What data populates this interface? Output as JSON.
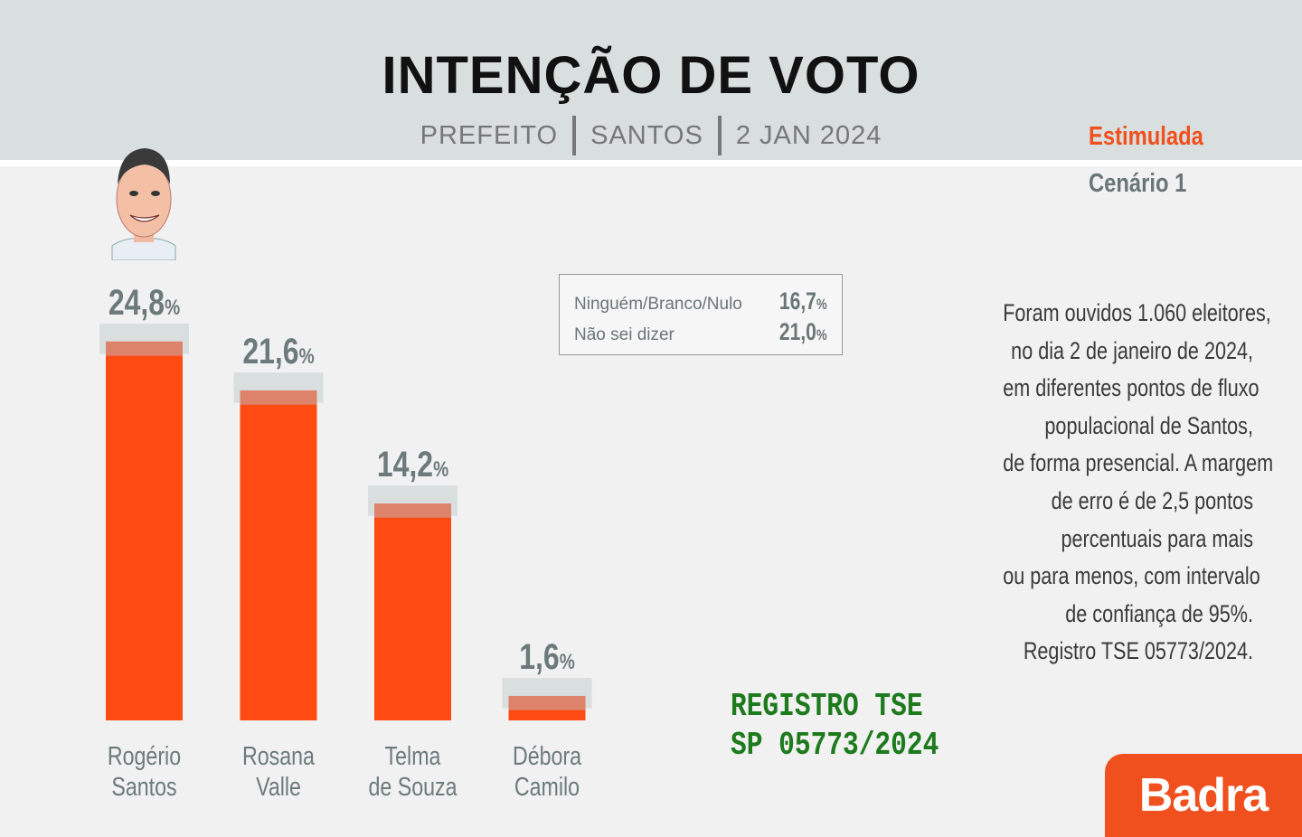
{
  "header": {
    "title": "INTENÇÃO DE VOTO",
    "subtitle_parts": [
      "PREFEITO",
      "SANTOS",
      "2 JAN 2024"
    ]
  },
  "scenario": {
    "type": "Estimulada",
    "name": "Cenário 1"
  },
  "chart_data": {
    "type": "bar",
    "categories": [
      [
        "Rogério",
        "Santos"
      ],
      [
        "Rosana",
        "Valle"
      ],
      [
        "Telma",
        "de Souza"
      ],
      [
        "Débora",
        "Camilo"
      ]
    ],
    "values": [
      24.8,
      21.6,
      14.2,
      1.6
    ],
    "value_labels": [
      "24,8",
      "21,6",
      "14,2",
      "1,6"
    ],
    "value_unit": "%",
    "ylim": [
      0,
      28
    ],
    "margin_of_error": 2.5,
    "bar_color": "#ff4a12",
    "error_band_color": "#d9dedf",
    "value_color": "#6c7a7c"
  },
  "legend": {
    "items": [
      {
        "label": "Ninguém/Branco/Nulo",
        "value": "16,7",
        "unit": "%"
      },
      {
        "label": "Não sei dizer",
        "value": "21,0",
        "unit": "%"
      }
    ]
  },
  "methodology": {
    "lines": [
      "Foram ouvidos 1.060 eleitores,",
      "no dia 2 de janeiro de 2024,",
      "em diferentes pontos de fluxo",
      "populacional de Santos,",
      "de forma presencial. A margem",
      "de erro é de 2,5 pontos",
      "percentuais para mais",
      "ou para menos,  com intervalo",
      "de confiança de 95%.",
      "Registro TSE 05773/2024."
    ]
  },
  "stamp": {
    "line1": "REGISTRO TSE",
    "line2": "SP 05773/2024"
  },
  "brand": {
    "name": "Badra",
    "color": "#f0501e"
  }
}
